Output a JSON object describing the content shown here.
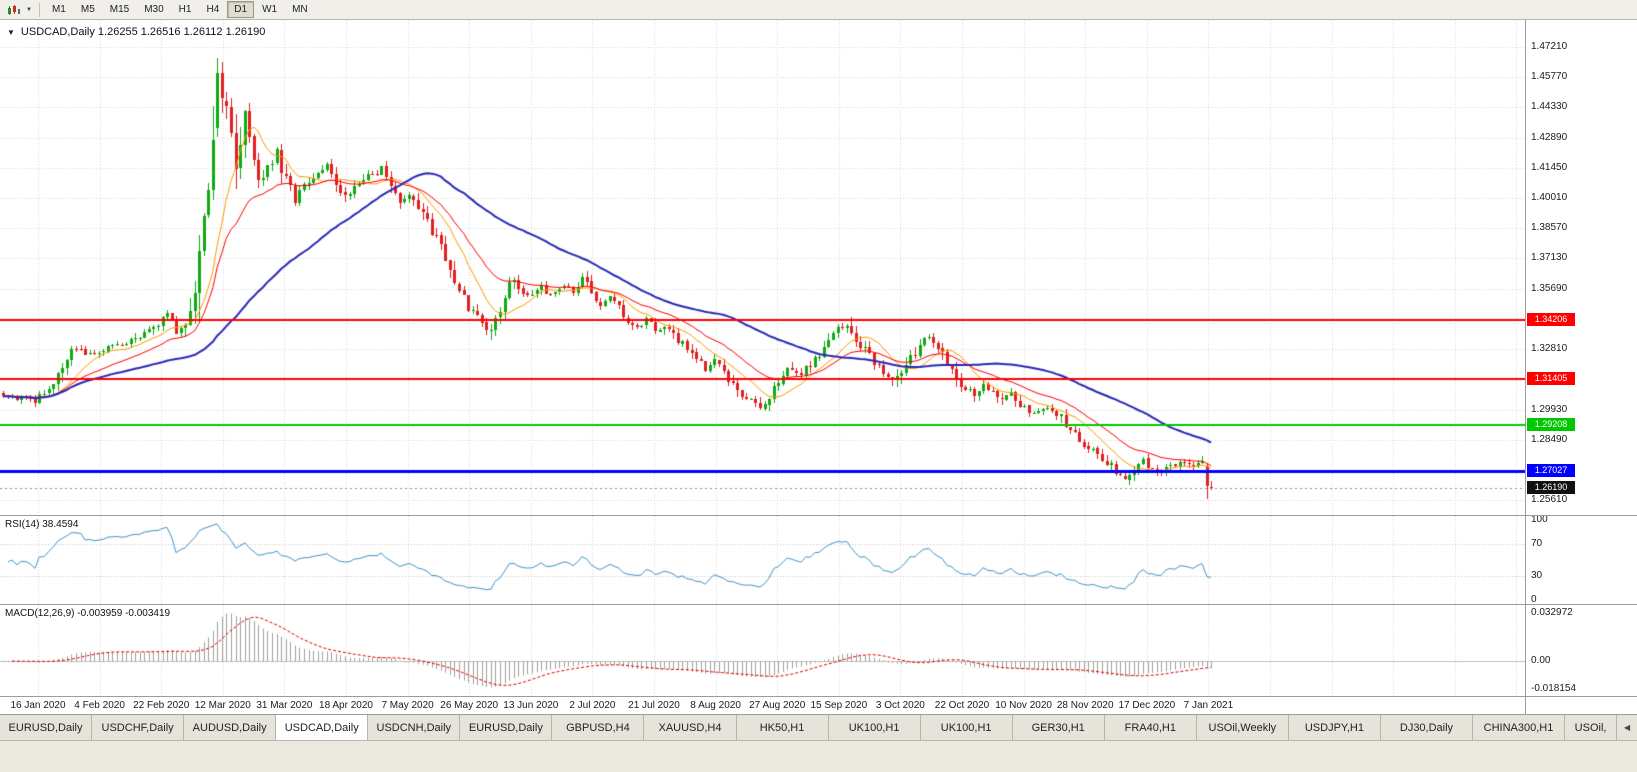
{
  "toolbar": {
    "timeframes": [
      "M1",
      "M5",
      "M15",
      "M30",
      "H1",
      "H4",
      "D1",
      "W1",
      "MN"
    ],
    "active_timeframe": "D1"
  },
  "icons": {
    "title_caret": "▼",
    "toolbar_caret": "▼",
    "tab_scroll": "◀"
  },
  "chart": {
    "title_line": "USDCAD,Daily 1.26255 1.26516 1.26112 1.26190",
    "symbol": "USDCAD",
    "period": "Daily"
  },
  "rsi": {
    "label": "RSI(14) 38.4594",
    "period": 14,
    "current": 38.4594,
    "levels": [
      70,
      30
    ],
    "axis_labels": [
      "100",
      "70",
      "30",
      "0"
    ],
    "color": "#4296cb"
  },
  "macd": {
    "label": "MACD(12,26,9) -0.003959 -0.003419",
    "fast": 12,
    "slow": 26,
    "signal_period": 9,
    "current_macd": -0.003959,
    "current_signal": -0.003419,
    "axis_max": "0.032972",
    "axis_zero": "0.00",
    "axis_min": "-0.018154",
    "histogram_color": "#a0a0a0",
    "signal_color": "#e00000"
  },
  "tabs": {
    "items": [
      "EURUSD,Daily",
      "USDCHF,Daily",
      "AUDUSD,Daily",
      "USDCAD,Daily",
      "USDCNH,Daily",
      "EURUSD,Daily",
      "GBPUSD,H4",
      "XAUUSD,H4",
      "HK50,H1",
      "UK100,H1",
      "UK100,H1",
      "GER30,H1",
      "FRA40,H1",
      "USOil,Weekly",
      "USDJPY,H1",
      "DJ30,Daily",
      "CHINA300,H1",
      "USOil,"
    ],
    "active_index": 3
  },
  "chart_data": {
    "type": "candlestick",
    "symbol": "USDCAD",
    "timeframe": "Daily",
    "title": "USDCAD,Daily",
    "last_candle": {
      "open": 1.26255,
      "high": 1.26516,
      "low": 1.26112,
      "close": 1.2619
    },
    "current_price_label": "1.26190",
    "current_price_badge_color": "#111111",
    "spike_high": 1.4669,
    "ylim": [
      1.252,
      1.482
    ],
    "y_tick_labels": [
      "1.47210",
      "1.45770",
      "1.44330",
      "1.42890",
      "1.41450",
      "1.40010",
      "1.38570",
      "1.37130",
      "1.35690",
      "1.34250",
      "1.32810",
      "1.31370",
      "1.29930",
      "1.28490",
      "1.27050",
      "1.25610"
    ],
    "x_tick_labels": [
      "16 Jan 2020",
      "4 Feb 2020",
      "22 Feb 2020",
      "12 Mar 2020",
      "31 Mar 2020",
      "18 Apr 2020",
      "7 May 2020",
      "26 May 2020",
      "13 Jun 2020",
      "2 Jul 2020",
      "21 Jul 2020",
      "8 Aug 2020",
      "27 Aug 2020",
      "15 Sep 2020",
      "3 Oct 2020",
      "22 Oct 2020",
      "10 Nov 2020",
      "28 Nov 2020",
      "17 Dec 2020",
      "7 Jan 2021"
    ],
    "num_candles": 266,
    "seed": 20210122,
    "up_color": "#12a812",
    "down_color": "#e02020",
    "grid_color": "#d6d6d6",
    "close_path_anchors": [
      [
        0,
        1.3062
      ],
      [
        3,
        1.3046
      ],
      [
        7,
        1.3036
      ],
      [
        11,
        1.3105
      ],
      [
        15,
        1.3282
      ],
      [
        19,
        1.3252
      ],
      [
        24,
        1.3294
      ],
      [
        29,
        1.3322
      ],
      [
        33,
        1.339
      ],
      [
        36,
        1.3438
      ],
      [
        38,
        1.3372
      ],
      [
        40,
        1.342
      ],
      [
        42,
        1.356
      ],
      [
        43,
        1.378
      ],
      [
        44,
        1.3925
      ],
      [
        45,
        1.406
      ],
      [
        46,
        1.424
      ],
      [
        47,
        1.459
      ],
      [
        48,
        1.448
      ],
      [
        49,
        1.442
      ],
      [
        50,
        1.43
      ],
      [
        51,
        1.416
      ],
      [
        52,
        1.4265
      ],
      [
        53,
        1.437
      ],
      [
        54,
        1.4285
      ],
      [
        55,
        1.4185
      ],
      [
        56,
        1.4085
      ],
      [
        58,
        1.4155
      ],
      [
        60,
        1.4215
      ],
      [
        62,
        1.4085
      ],
      [
        64,
        1.3985
      ],
      [
        66,
        1.4065
      ],
      [
        69,
        1.413
      ],
      [
        71,
        1.4175
      ],
      [
        73,
        1.408
      ],
      [
        75,
        1.3995
      ],
      [
        77,
        1.405
      ],
      [
        80,
        1.41
      ],
      [
        83,
        1.4135
      ],
      [
        85,
        1.405
      ],
      [
        87,
        1.3985
      ],
      [
        89,
        1.402
      ],
      [
        91,
        1.395
      ],
      [
        93,
        1.388
      ],
      [
        96,
        1.3782
      ],
      [
        98,
        1.3685
      ],
      [
        100,
        1.3565
      ],
      [
        102,
        1.3485
      ],
      [
        104,
        1.3425
      ],
      [
        106,
        1.339
      ],
      [
        107,
        1.336
      ],
      [
        108,
        1.3435
      ],
      [
        110,
        1.353
      ],
      [
        112,
        1.3618
      ],
      [
        114,
        1.356
      ],
      [
        116,
        1.3532
      ],
      [
        118,
        1.3575
      ],
      [
        120,
        1.3542
      ],
      [
        123,
        1.3598
      ],
      [
        125,
        1.3562
      ],
      [
        127,
        1.3608
      ],
      [
        129,
        1.3558
      ],
      [
        131,
        1.3502
      ],
      [
        133,
        1.3528
      ],
      [
        135,
        1.3478
      ],
      [
        137,
        1.3412
      ],
      [
        139,
        1.3382
      ],
      [
        141,
        1.342
      ],
      [
        143,
        1.3372
      ],
      [
        145,
        1.3392
      ],
      [
        147,
        1.3342
      ],
      [
        150,
        1.3282
      ],
      [
        152,
        1.3232
      ],
      [
        154,
        1.3182
      ],
      [
        156,
        1.3222
      ],
      [
        158,
        1.3162
      ],
      [
        160,
        1.3112
      ],
      [
        162,
        1.3062
      ],
      [
        164,
        1.3032
      ],
      [
        166,
        1.3002
      ],
      [
        168,
        1.3062
      ],
      [
        170,
        1.3132
      ],
      [
        172,
        1.3182
      ],
      [
        174,
        1.3152
      ],
      [
        177,
        1.3202
      ],
      [
        179,
        1.3252
      ],
      [
        181,
        1.3322
      ],
      [
        183,
        1.3382
      ],
      [
        185,
        1.3408
      ],
      [
        187,
        1.3322
      ],
      [
        189,
        1.3272
      ],
      [
        191,
        1.3222
      ],
      [
        193,
        1.3152
      ],
      [
        195,
        1.3122
      ],
      [
        197,
        1.3182
      ],
      [
        199,
        1.3242
      ],
      [
        201,
        1.3312
      ],
      [
        203,
        1.3338
      ],
      [
        205,
        1.3302
      ],
      [
        207,
        1.3222
      ],
      [
        209,
        1.3152
      ],
      [
        211,
        1.3092
      ],
      [
        213,
        1.3062
      ],
      [
        215,
        1.3102
      ],
      [
        217,
        1.3072
      ],
      [
        219,
        1.3032
      ],
      [
        221,
        1.3072
      ],
      [
        223,
        1.3012
      ],
      [
        225,
        1.2982
      ],
      [
        228,
        1.2998
      ],
      [
        231,
        1.2978
      ],
      [
        233,
        1.2922
      ],
      [
        235,
        1.2872
      ],
      [
        237,
        1.2822
      ],
      [
        239,
        1.2792
      ],
      [
        241,
        1.2762
      ],
      [
        243,
        1.2722
      ],
      [
        244,
        1.2702
      ],
      [
        246,
        1.2662
      ],
      [
        248,
        1.2702
      ],
      [
        250,
        1.2742
      ],
      [
        252,
        1.2712
      ],
      [
        254,
        1.2688
      ],
      [
        256,
        1.2722
      ],
      [
        258,
        1.2748
      ],
      [
        260,
        1.2722
      ],
      [
        262,
        1.2744
      ],
      [
        263,
        1.2732
      ],
      [
        264,
        1.2629
      ],
      [
        265,
        1.2619
      ]
    ],
    "candle_overrides": [
      {
        "i": 47,
        "o": 1.4335,
        "h": 1.4669,
        "l": 1.429,
        "c": 1.4595
      },
      {
        "i": 48,
        "o": 1.4595,
        "h": 1.465,
        "l": 1.4405,
        "c": 1.4475
      },
      {
        "i": 264,
        "o": 1.2727,
        "h": 1.2741,
        "l": 1.2566,
        "c": 1.2629
      }
    ],
    "horizontal_lines": [
      {
        "price": 1.34206,
        "label": "1.34206",
        "color": "#ff0000",
        "width": 2
      },
      {
        "price": 1.31405,
        "label": "1.31405",
        "color": "#ff0000",
        "width": 2
      },
      {
        "price": 1.29208,
        "label": "1.29208",
        "color": "#00c800",
        "width": 2
      },
      {
        "price": 1.27027,
        "label": "1.27027",
        "color": "#0000ff",
        "width": 3
      }
    ],
    "moving_averages": [
      {
        "kind": "sma",
        "period": 10,
        "color": "#ff9900",
        "width": 1
      },
      {
        "kind": "ema",
        "period": 21,
        "color": "#ff0000",
        "width": 1
      },
      {
        "kind": "sma",
        "period": 50,
        "color": "#2929b8",
        "width": 2
      }
    ]
  }
}
